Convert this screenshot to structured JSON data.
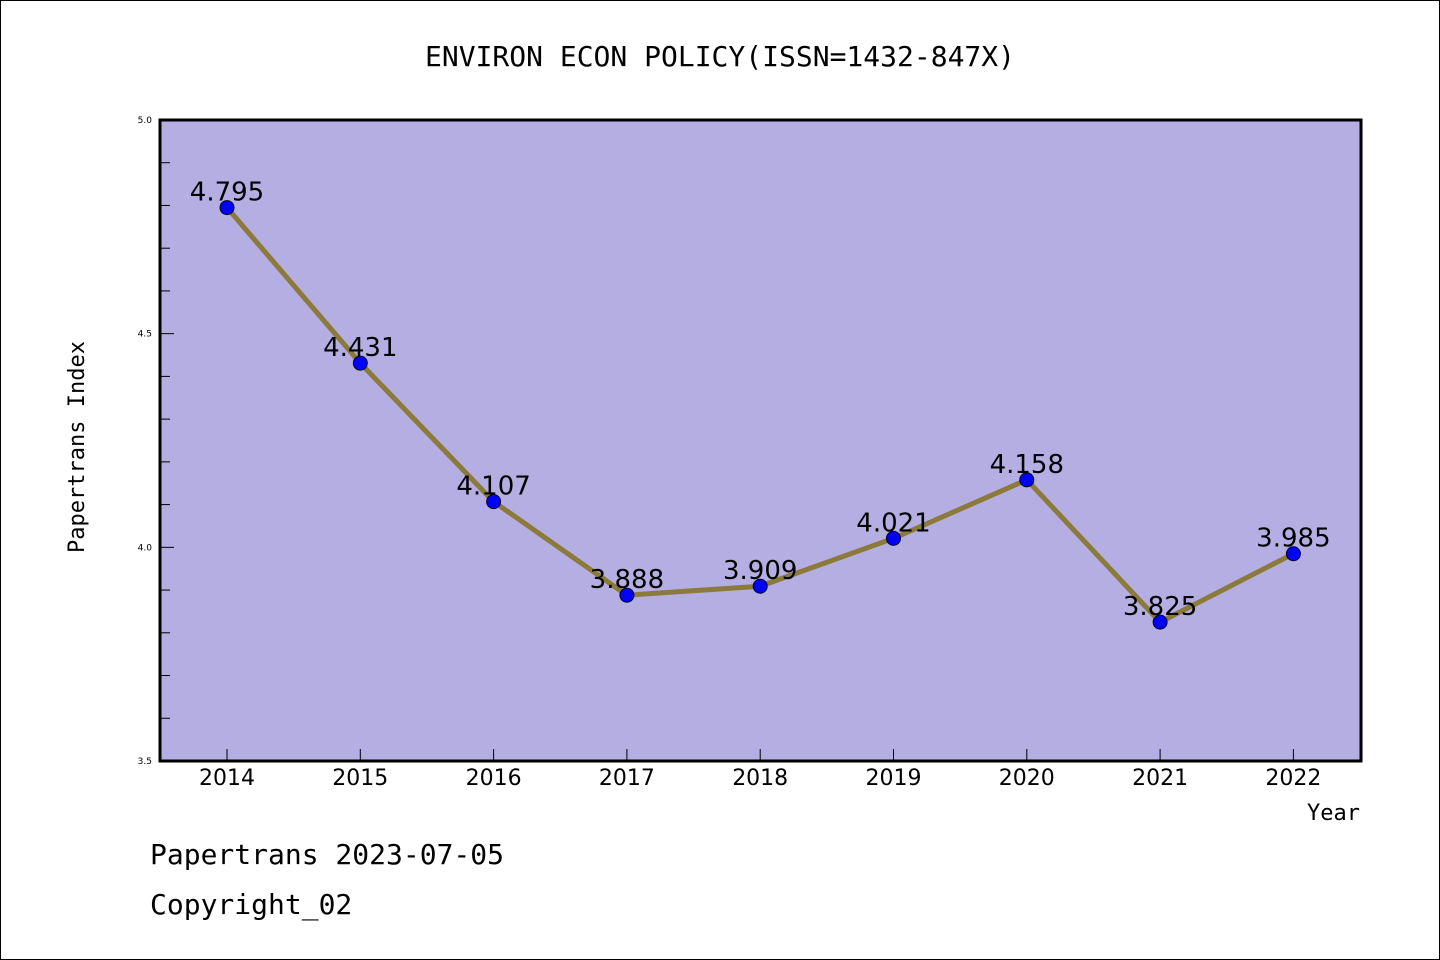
{
  "chart_data": {
    "type": "line",
    "title": "ENVIRON ECON POLICY(ISSN=1432-847X)",
    "xlabel": "Year",
    "ylabel": "Papertrans Index",
    "categories": [
      "2014",
      "2015",
      "2016",
      "2017",
      "2018",
      "2019",
      "2020",
      "2021",
      "2022"
    ],
    "values": [
      4.795,
      4.431,
      4.107,
      3.888,
      3.909,
      4.021,
      4.158,
      3.825,
      3.985
    ],
    "value_labels": [
      "4.795",
      "4.431",
      "4.107",
      "3.888",
      "3.909",
      "4.021",
      "4.158",
      "3.825",
      "3.985"
    ],
    "ylim": [
      3.5,
      5.0
    ],
    "yticks": [
      "3.5",
      "4.0",
      "4.5",
      "5.0"
    ],
    "grid": false,
    "colors": {
      "plot_background": "#b5aee2",
      "line": "#8b7a3a",
      "marker": "#0000ff",
      "axes": "#000000"
    }
  },
  "footer": {
    "line1": "Papertrans 2023-07-05",
    "line2": "Copyright_02"
  }
}
